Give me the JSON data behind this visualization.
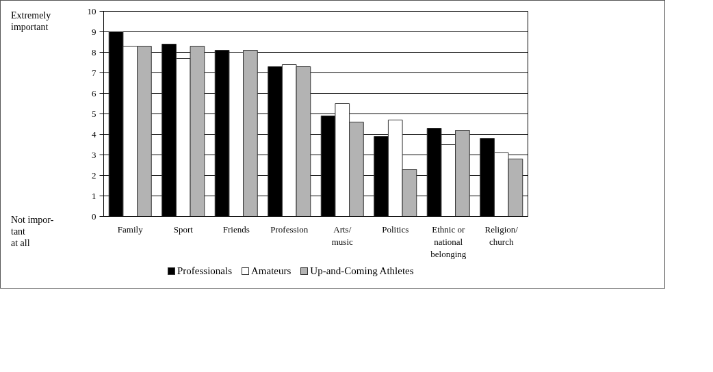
{
  "chart_data": {
    "type": "bar",
    "categories": [
      "Family",
      "Sport",
      "Friends",
      "Profession",
      "Arts/\nmusic",
      "Politics",
      "Ethnic or\nnational\nbelonging",
      "Religion/\nchurch"
    ],
    "series": [
      {
        "name": "Professionals",
        "color": "#000000",
        "values": [
          9.0,
          8.4,
          8.1,
          7.3,
          4.9,
          3.9,
          4.3,
          3.8
        ]
      },
      {
        "name": "Amateurs",
        "color": "#ffffff",
        "values": [
          8.3,
          7.7,
          8.0,
          7.4,
          5.5,
          4.7,
          3.5,
          3.1
        ]
      },
      {
        "name": "Up-and-Coming Athletes",
        "color": "#b3b3b3",
        "values": [
          8.3,
          8.3,
          8.1,
          7.3,
          4.6,
          2.3,
          4.2,
          2.8
        ]
      }
    ],
    "annotations": [
      "Extremely\nimportant",
      "Not impor-\ntant\nat all"
    ],
    "ylim": [
      0,
      10
    ],
    "yticks": [
      0,
      1,
      2,
      3,
      4,
      5,
      6,
      7,
      8,
      9,
      10
    ],
    "grid": "y",
    "legend": "bottom"
  }
}
